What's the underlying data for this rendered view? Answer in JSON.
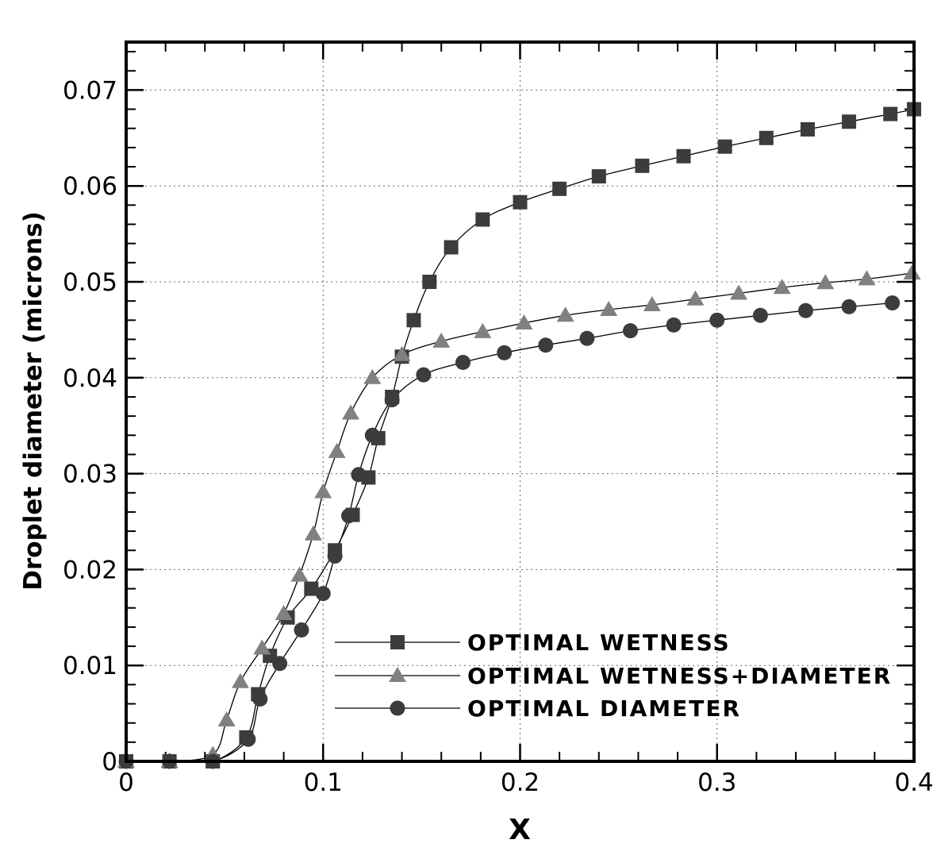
{
  "chart_data": {
    "type": "line",
    "xlabel": "X",
    "ylabel": "Droplet diameter (microns)",
    "xlim": [
      0,
      0.4
    ],
    "ylim": [
      0,
      0.075
    ],
    "x_ticks": [
      "0",
      "0.1",
      "0.2",
      "0.3",
      "0.4"
    ],
    "y_ticks": [
      "0",
      "0.01",
      "0.02",
      "0.03",
      "0.04",
      "0.05",
      "0.06",
      "0.07"
    ],
    "grid": true,
    "legend_position": "bottom-right",
    "series": [
      {
        "name": "OPTIMAL WETNESS",
        "marker": "square",
        "color": "#3c3c3c",
        "x": [
          0,
          0.022,
          0.044,
          0.061,
          0.067,
          0.073,
          0.082,
          0.094,
          0.106,
          0.115,
          0.123,
          0.128,
          0.135,
          0.14,
          0.146,
          0.154,
          0.165,
          0.181,
          0.2,
          0.22,
          0.24,
          0.262,
          0.283,
          0.304,
          0.325,
          0.346,
          0.367,
          0.388,
          0.4
        ],
        "y": [
          0,
          0,
          0,
          0.0025,
          0.007,
          0.011,
          0.015,
          0.018,
          0.022,
          0.0257,
          0.0296,
          0.0337,
          0.038,
          0.0422,
          0.046,
          0.05,
          0.0536,
          0.0565,
          0.0583,
          0.0597,
          0.061,
          0.0621,
          0.0631,
          0.0641,
          0.065,
          0.0659,
          0.0667,
          0.0675,
          0.068
        ]
      },
      {
        "name": "OPTIMAL WETNESS+DIAMETER",
        "marker": "triangle",
        "color": "#808080",
        "x": [
          0,
          0.022,
          0.044,
          0.051,
          0.058,
          0.069,
          0.08,
          0.088,
          0.095,
          0.1,
          0.107,
          0.114,
          0.125,
          0.14,
          0.16,
          0.181,
          0.202,
          0.223,
          0.245,
          0.267,
          0.289,
          0.311,
          0.333,
          0.355,
          0.376,
          0.399
        ],
        "y": [
          0,
          0,
          0.0007,
          0.0043,
          0.0083,
          0.0118,
          0.0154,
          0.0194,
          0.0237,
          0.0281,
          0.0323,
          0.0363,
          0.04,
          0.0424,
          0.0438,
          0.0448,
          0.0457,
          0.0465,
          0.0471,
          0.0476,
          0.0482,
          0.0488,
          0.0494,
          0.0499,
          0.0503,
          0.0509
        ]
      },
      {
        "name": "OPTIMAL DIAMETER",
        "marker": "circle",
        "color": "#3c3c3c",
        "x": [
          0,
          0.022,
          0.044,
          0.062,
          0.068,
          0.078,
          0.089,
          0.1,
          0.106,
          0.113,
          0.118,
          0.125,
          0.135,
          0.151,
          0.171,
          0.192,
          0.213,
          0.234,
          0.256,
          0.278,
          0.3,
          0.322,
          0.345,
          0.367,
          0.389
        ],
        "y": [
          0,
          0,
          0,
          0.0023,
          0.0065,
          0.0102,
          0.0137,
          0.0175,
          0.0214,
          0.0256,
          0.0299,
          0.034,
          0.0377,
          0.0403,
          0.0416,
          0.0426,
          0.0434,
          0.0441,
          0.0449,
          0.0455,
          0.046,
          0.0465,
          0.047,
          0.0474,
          0.0478
        ]
      }
    ]
  }
}
